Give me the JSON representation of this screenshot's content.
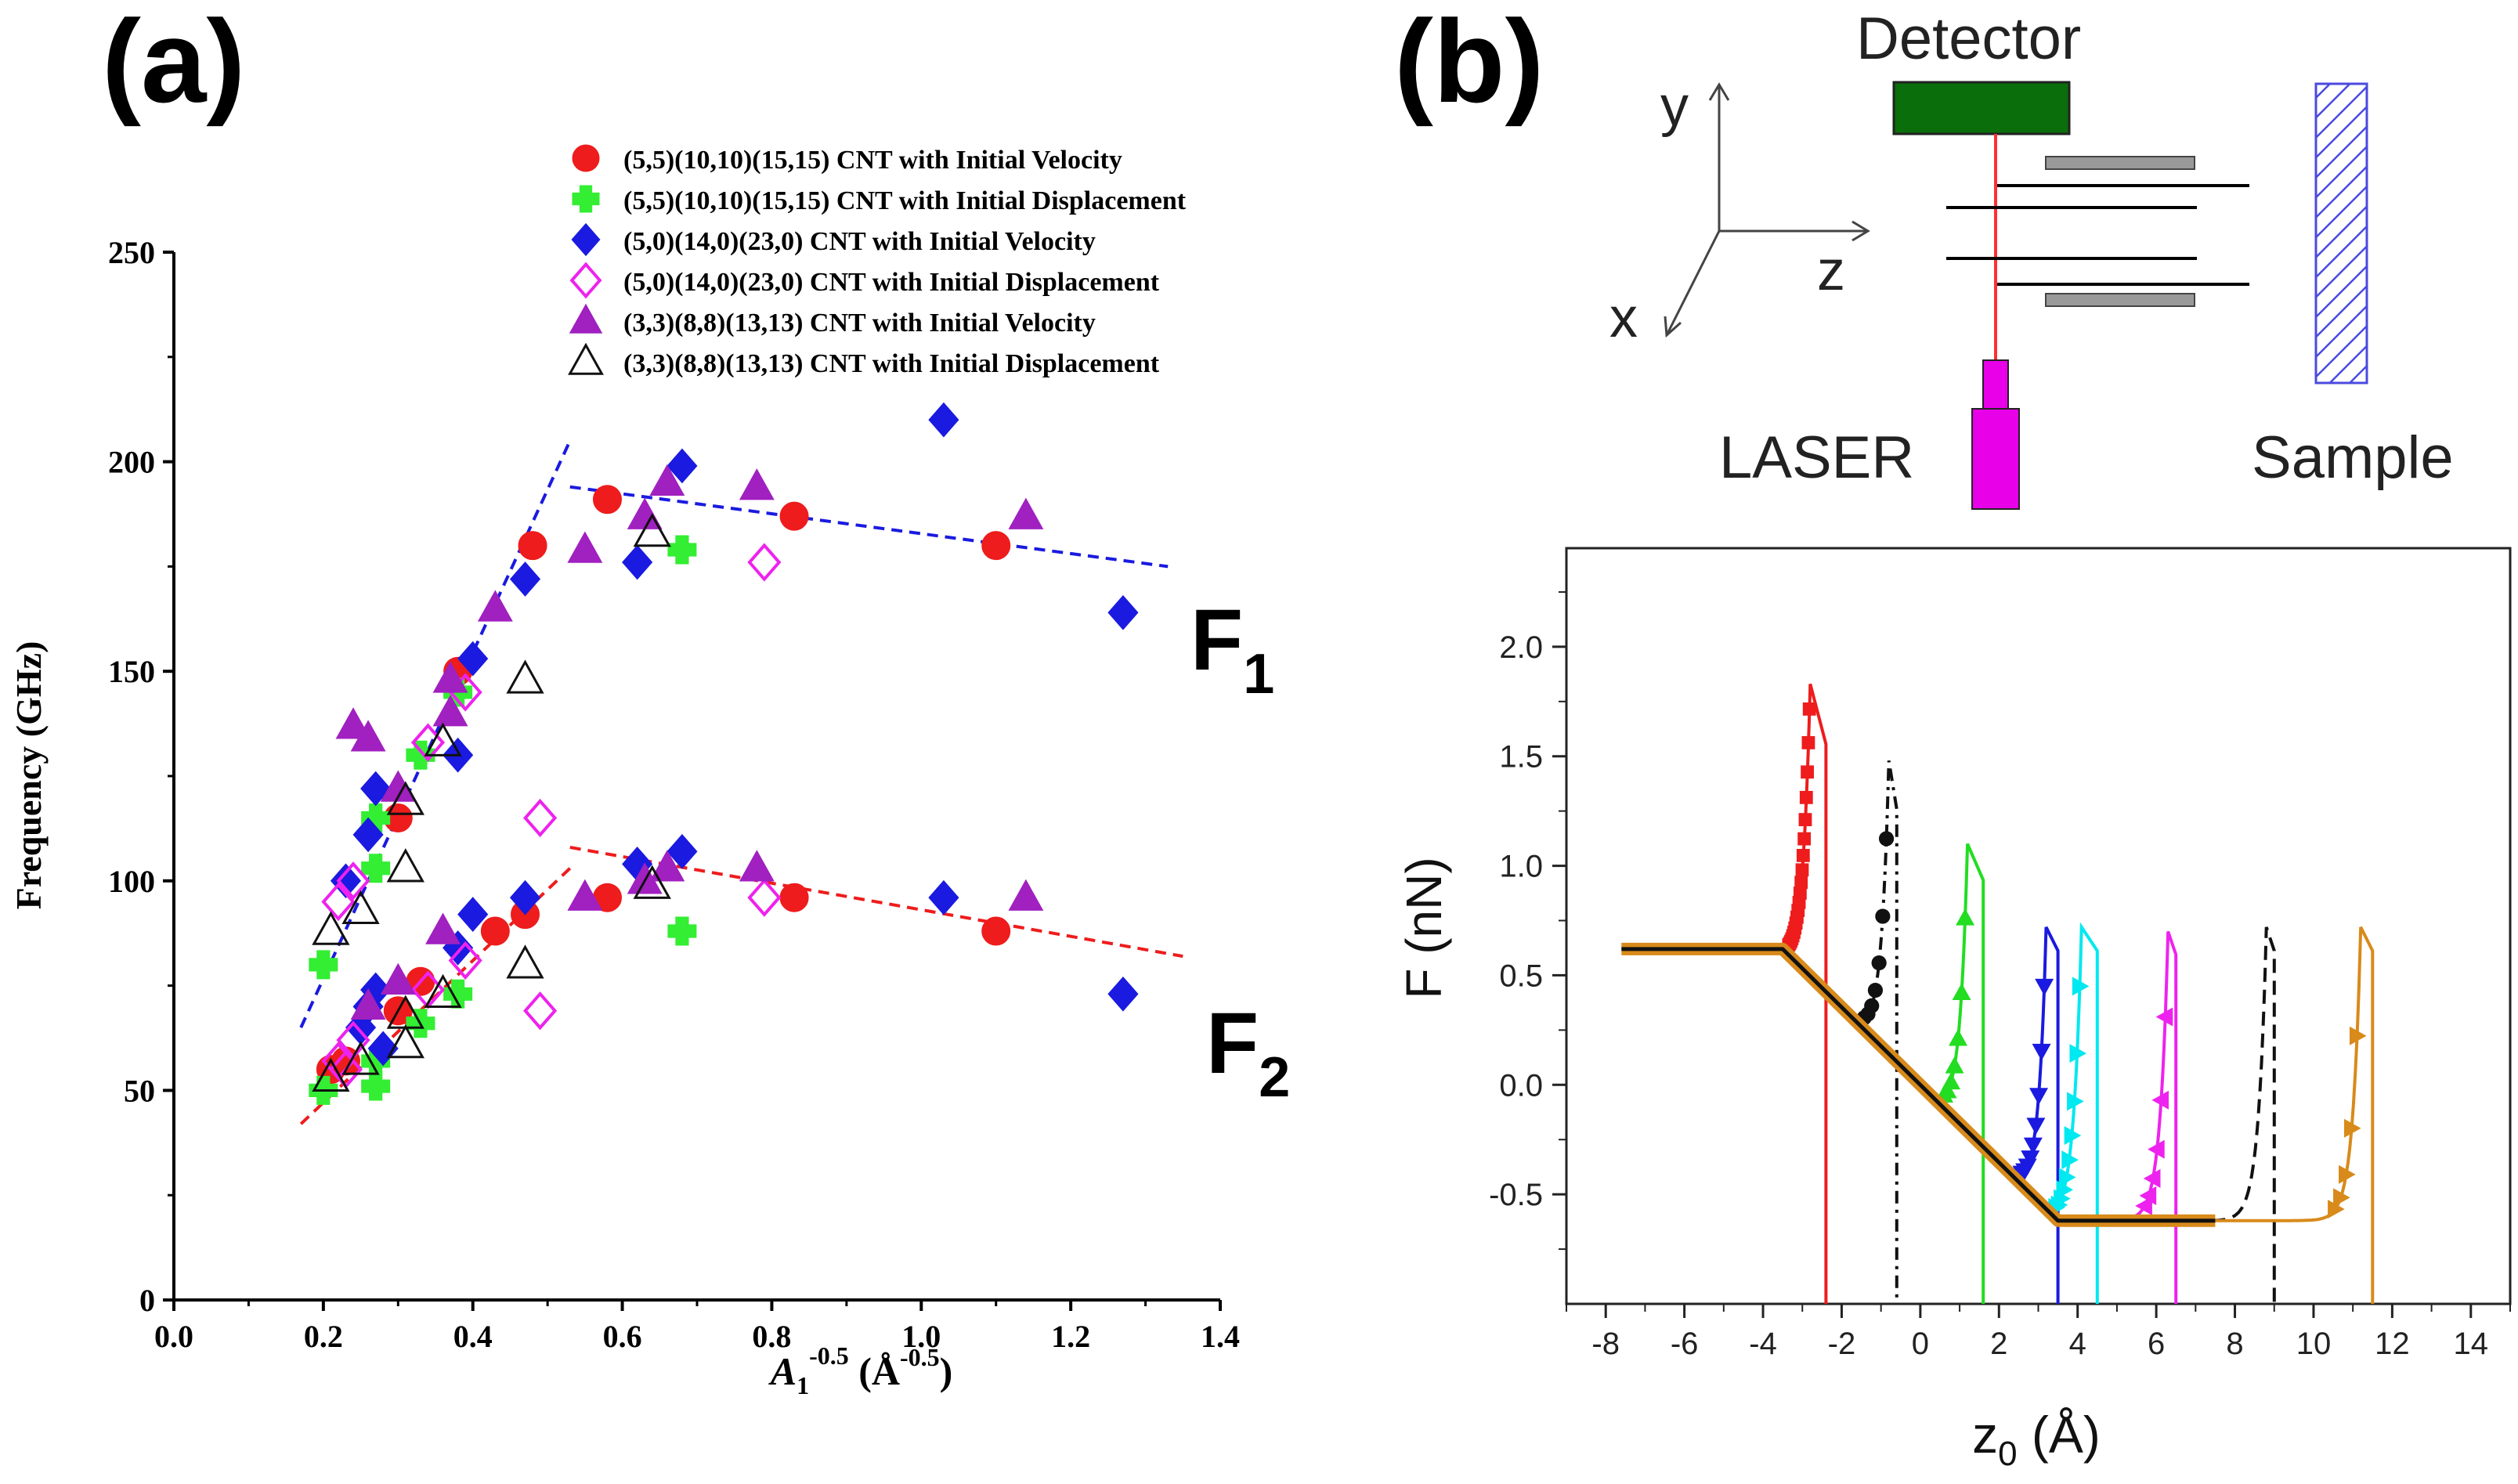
{
  "panel_a": {
    "label": "(a)",
    "f1_label": "F",
    "f1_sub": "1",
    "f2_label": "F",
    "f2_sub": "2",
    "xlabel_main": "A",
    "xlabel_sub": "1",
    "xlabel_sup": "-0.5",
    "xlabel_unit": " (Å",
    "xlabel_unit_sup": "-0.5",
    "xlabel_close": ")"
  },
  "panel_b": {
    "label": "(b)",
    "schematic": {
      "detector": "Detector",
      "laser": "LASER",
      "sample": "Sample",
      "axis_x": "x",
      "axis_y": "y",
      "axis_z": "z",
      "colors": {
        "detector": "#0a6e0a",
        "laser": "#e800e8",
        "beam": "#ff3030",
        "sample_hatch": "#4a4ae0"
      }
    },
    "xlabel_main": "z",
    "xlabel_sub": "0",
    "xlabel_unit": " (Å)",
    "ylabel": "F  (nN)"
  },
  "chart_data": [
    {
      "type": "scatter",
      "title": "(a)",
      "xlabel": "A1^-0.5 (Å^-0.5)",
      "ylabel": "Frequency (GHz)",
      "xlim": [
        0.0,
        1.4
      ],
      "ylim": [
        0,
        250
      ],
      "xticks": [
        0.0,
        0.2,
        0.4,
        0.6,
        0.8,
        1.0,
        1.2,
        1.4
      ],
      "yticks": [
        0,
        50,
        100,
        150,
        200,
        250
      ],
      "legend_position": "top",
      "series": [
        {
          "name": "(5,5)(10,10)(15,15) CNT with Initial Velocity",
          "marker": "circle",
          "color": "#ee1c1c",
          "filled": true,
          "points": [
            [
              0.58,
              191
            ],
            [
              0.83,
              187
            ],
            [
              1.1,
              180
            ],
            [
              0.48,
              180
            ],
            [
              0.38,
              150
            ],
            [
              0.3,
              115
            ],
            [
              0.21,
              55
            ],
            [
              0.23,
              57
            ],
            [
              0.3,
              69
            ],
            [
              0.33,
              76
            ],
            [
              0.43,
              88
            ],
            [
              0.47,
              92
            ],
            [
              0.58,
              96
            ],
            [
              0.83,
              96
            ],
            [
              1.1,
              88
            ]
          ]
        },
        {
          "name": "(5,5)(10,10)(15,15) CNT with Initial Displacement",
          "marker": "plus",
          "color": "#33ee33",
          "filled": true,
          "points": [
            [
              0.2,
              80
            ],
            [
              0.27,
              115
            ],
            [
              0.27,
              103
            ],
            [
              0.33,
              130
            ],
            [
              0.38,
              145
            ],
            [
              0.68,
              179
            ],
            [
              0.2,
              50
            ],
            [
              0.27,
              51
            ],
            [
              0.27,
              57
            ],
            [
              0.33,
              66
            ],
            [
              0.38,
              73
            ],
            [
              0.68,
              88
            ]
          ]
        },
        {
          "name": "(5,0)(14,0)(23,0) CNT with Initial Velocity",
          "marker": "diamond",
          "color": "#1a1ae0",
          "filled": true,
          "points": [
            [
              1.03,
              210
            ],
            [
              0.68,
              199
            ],
            [
              0.62,
              176
            ],
            [
              0.47,
              172
            ],
            [
              1.27,
              164
            ],
            [
              0.4,
              153
            ],
            [
              0.38,
              130
            ],
            [
              0.27,
              122
            ],
            [
              0.26,
              111
            ],
            [
              0.23,
              100
            ],
            [
              0.68,
              107
            ],
            [
              0.62,
              104
            ],
            [
              1.03,
              96
            ],
            [
              0.47,
              96
            ],
            [
              0.4,
              92
            ],
            [
              0.38,
              84
            ],
            [
              0.27,
              74
            ],
            [
              0.26,
              70
            ],
            [
              0.25,
              65
            ],
            [
              1.27,
              73
            ],
            [
              0.28,
              60
            ]
          ]
        },
        {
          "name": "(5,0)(14,0)(23,0) CNT with Initial Displacement",
          "marker": "diamond",
          "color": "#ee22ee",
          "filled": false,
          "points": [
            [
              0.79,
              176
            ],
            [
              0.39,
              145
            ],
            [
              0.34,
              133
            ],
            [
              0.24,
              100
            ],
            [
              0.22,
              95
            ],
            [
              0.49,
              115
            ],
            [
              0.49,
              69
            ],
            [
              0.79,
              96
            ],
            [
              0.39,
              81
            ],
            [
              0.34,
              74
            ],
            [
              0.24,
              62
            ],
            [
              0.22,
              57
            ],
            [
              0.23,
              55
            ]
          ]
        },
        {
          "name": "(3,3)(8,8)(13,13) CNT with Initial Velocity",
          "marker": "triangle",
          "color": "#a020c0",
          "filled": true,
          "points": [
            [
              0.78,
              194
            ],
            [
              0.66,
              195
            ],
            [
              0.63,
              187
            ],
            [
              0.55,
              179
            ],
            [
              1.14,
              187
            ],
            [
              0.43,
              165
            ],
            [
              0.37,
              148
            ],
            [
              0.37,
              140
            ],
            [
              0.3,
              122
            ],
            [
              0.24,
              137
            ],
            [
              0.26,
              134
            ],
            [
              0.78,
              103
            ],
            [
              0.66,
              103
            ],
            [
              0.63,
              100
            ],
            [
              0.55,
              96
            ],
            [
              1.14,
              96
            ],
            [
              0.36,
              88
            ],
            [
              0.3,
              76
            ],
            [
              0.26,
              70
            ]
          ]
        },
        {
          "name": "(3,3)(8,8)(13,13) CNT with Initial Displacement",
          "marker": "triangle",
          "color": "#111111",
          "filled": false,
          "points": [
            [
              0.64,
              183
            ],
            [
              0.47,
              148
            ],
            [
              0.36,
              133
            ],
            [
              0.31,
              119
            ],
            [
              0.31,
              103
            ],
            [
              0.25,
              93
            ],
            [
              0.21,
              88
            ],
            [
              0.64,
              99
            ],
            [
              0.47,
              80
            ],
            [
              0.36,
              73
            ],
            [
              0.31,
              68
            ],
            [
              0.31,
              61
            ],
            [
              0.25,
              57
            ],
            [
              0.21,
              53
            ]
          ]
        }
      ],
      "fit_lines": [
        {
          "name": "F1 rise",
          "color": "#1a1ae0",
          "points": [
            [
              0.17,
              65
            ],
            [
              0.53,
              205
            ]
          ]
        },
        {
          "name": "F1 fall",
          "color": "#1a1ae0",
          "points": [
            [
              0.53,
              194
            ],
            [
              1.33,
              175
            ]
          ]
        },
        {
          "name": "F2 rise",
          "color": "#ee1c1c",
          "points": [
            [
              0.17,
              42
            ],
            [
              0.53,
              103
            ]
          ]
        },
        {
          "name": "F2 fall",
          "color": "#ee1c1c",
          "points": [
            [
              0.53,
              108
            ],
            [
              1.35,
              82
            ]
          ]
        }
      ],
      "annotations": [
        "F1",
        "F2"
      ]
    },
    {
      "type": "line",
      "title": "(b)",
      "xlabel": "z0 (Å)",
      "ylabel": "F  (nN)",
      "xlim": [
        -9,
        15
      ],
      "ylim": [
        -1.0,
        2.45
      ],
      "xticks": [
        -8,
        -6,
        -4,
        -2,
        0,
        2,
        4,
        6,
        8,
        10,
        12,
        14
      ],
      "yticks": [
        -0.5,
        0.0,
        0.5,
        1.0,
        1.5,
        2.0
      ],
      "baseline": {
        "flat_value": 0.62,
        "flat_from": -7.6,
        "flat_to": -3.5,
        "slope_to_x": 3.5,
        "bottom_value": -0.62,
        "bottom_to": 7.5
      },
      "series": [
        {
          "name": "red",
          "color": "#ee1c1c",
          "style": "solid",
          "marker": "square",
          "split": -3.5,
          "peak": [
            -2.8,
            1.83
          ],
          "drop_x": -2.4
        },
        {
          "name": "black",
          "color": "#111111",
          "style": "dashdot",
          "marker": "circle",
          "split": -3.3,
          "peak": [
            -0.8,
            1.48
          ],
          "drop_x": -0.6
        },
        {
          "name": "green",
          "color": "#22dd22",
          "style": "solid",
          "marker": "triangle-up",
          "split": -1.2,
          "peak": [
            1.2,
            1.1
          ],
          "drop_x": 1.6
        },
        {
          "name": "blue",
          "color": "#1a1ae0",
          "style": "solid",
          "marker": "triangle-down",
          "split": 1.3,
          "peak": [
            3.2,
            0.72
          ],
          "drop_x": 3.5
        },
        {
          "name": "cyan",
          "color": "#00e8f0",
          "style": "solid",
          "marker": "triangle-right",
          "split": 2.3,
          "peak": [
            4.1,
            0.72
          ],
          "drop_x": 4.5
        },
        {
          "name": "magenta",
          "color": "#ee22ee",
          "style": "solid",
          "marker": "triangle-left",
          "split": 3.5,
          "peak": [
            6.3,
            0.7
          ],
          "drop_x": 6.5
        },
        {
          "name": "black dashed",
          "color": "#111111",
          "style": "dashed",
          "marker": "none",
          "split": 7.4,
          "peak": [
            8.8,
            0.72
          ],
          "drop_x": 9.0
        },
        {
          "name": "orange",
          "color": "#d88a1a",
          "style": "solid",
          "marker": "triangle-right",
          "split": 7.5,
          "peak": [
            11.2,
            0.72
          ],
          "drop_x": 11.5
        }
      ]
    }
  ]
}
